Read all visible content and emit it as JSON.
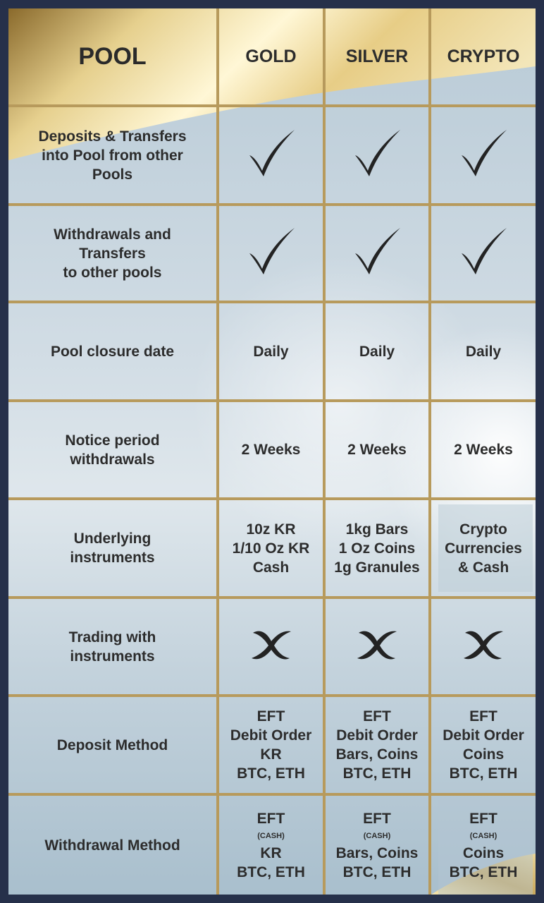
{
  "header": {
    "pool": "POOL",
    "columns": [
      "GOLD",
      "SILVER",
      "CRYPTO"
    ]
  },
  "rows": [
    {
      "label": [
        "Deposits & Transfers",
        "into Pool from other",
        "Pools"
      ],
      "gold": "check",
      "silver": "check",
      "crypto": "check"
    },
    {
      "label": [
        "Withdrawals and",
        "Transfers",
        "to other pools"
      ],
      "gold": "check",
      "silver": "check",
      "crypto": "check"
    },
    {
      "label": [
        "Pool closure date"
      ],
      "gold": [
        "Daily"
      ],
      "silver": [
        "Daily"
      ],
      "crypto": [
        "Daily"
      ]
    },
    {
      "label": [
        "Notice period",
        "withdrawals"
      ],
      "gold": [
        "2 Weeks"
      ],
      "silver": [
        "2 Weeks"
      ],
      "crypto": [
        "2 Weeks"
      ]
    },
    {
      "label": [
        "Underlying",
        "instruments"
      ],
      "gold": [
        "10z KR",
        "1/10 Oz KR",
        "Cash"
      ],
      "silver": [
        "1kg Bars",
        "1 Oz Coins",
        "1g Granules"
      ],
      "crypto": [
        "Crypto",
        "Currencies",
        "& Cash"
      ]
    },
    {
      "label": [
        "Trading with",
        "instruments"
      ],
      "gold": "cross",
      "silver": "cross",
      "crypto": "cross"
    },
    {
      "label": [
        "Deposit Method"
      ],
      "gold": [
        "EFT",
        "Debit Order",
        "KR",
        "BTC, ETH"
      ],
      "silver": [
        "EFT",
        "Debit Order",
        "Bars, Coins",
        "BTC, ETH"
      ],
      "crypto": [
        "EFT",
        "Debit Order",
        "Coins",
        "BTC, ETH"
      ]
    },
    {
      "label": [
        "Withdrawal Method"
      ],
      "gold": [
        "EFT",
        "(CASH)",
        "KR",
        "BTC, ETH"
      ],
      "silver": [
        "EFT",
        "(CASH)",
        "Bars, Coins",
        "BTC, ETH"
      ],
      "crypto": [
        "EFT",
        "(CASH)",
        "Coins",
        "BTC, ETH"
      ]
    }
  ],
  "icons": {
    "check": "check-icon",
    "cross": "cross-icon"
  },
  "colors": {
    "gold_line": "#b79a5c",
    "frame": "#26304a",
    "text": "#2c2c2c"
  }
}
